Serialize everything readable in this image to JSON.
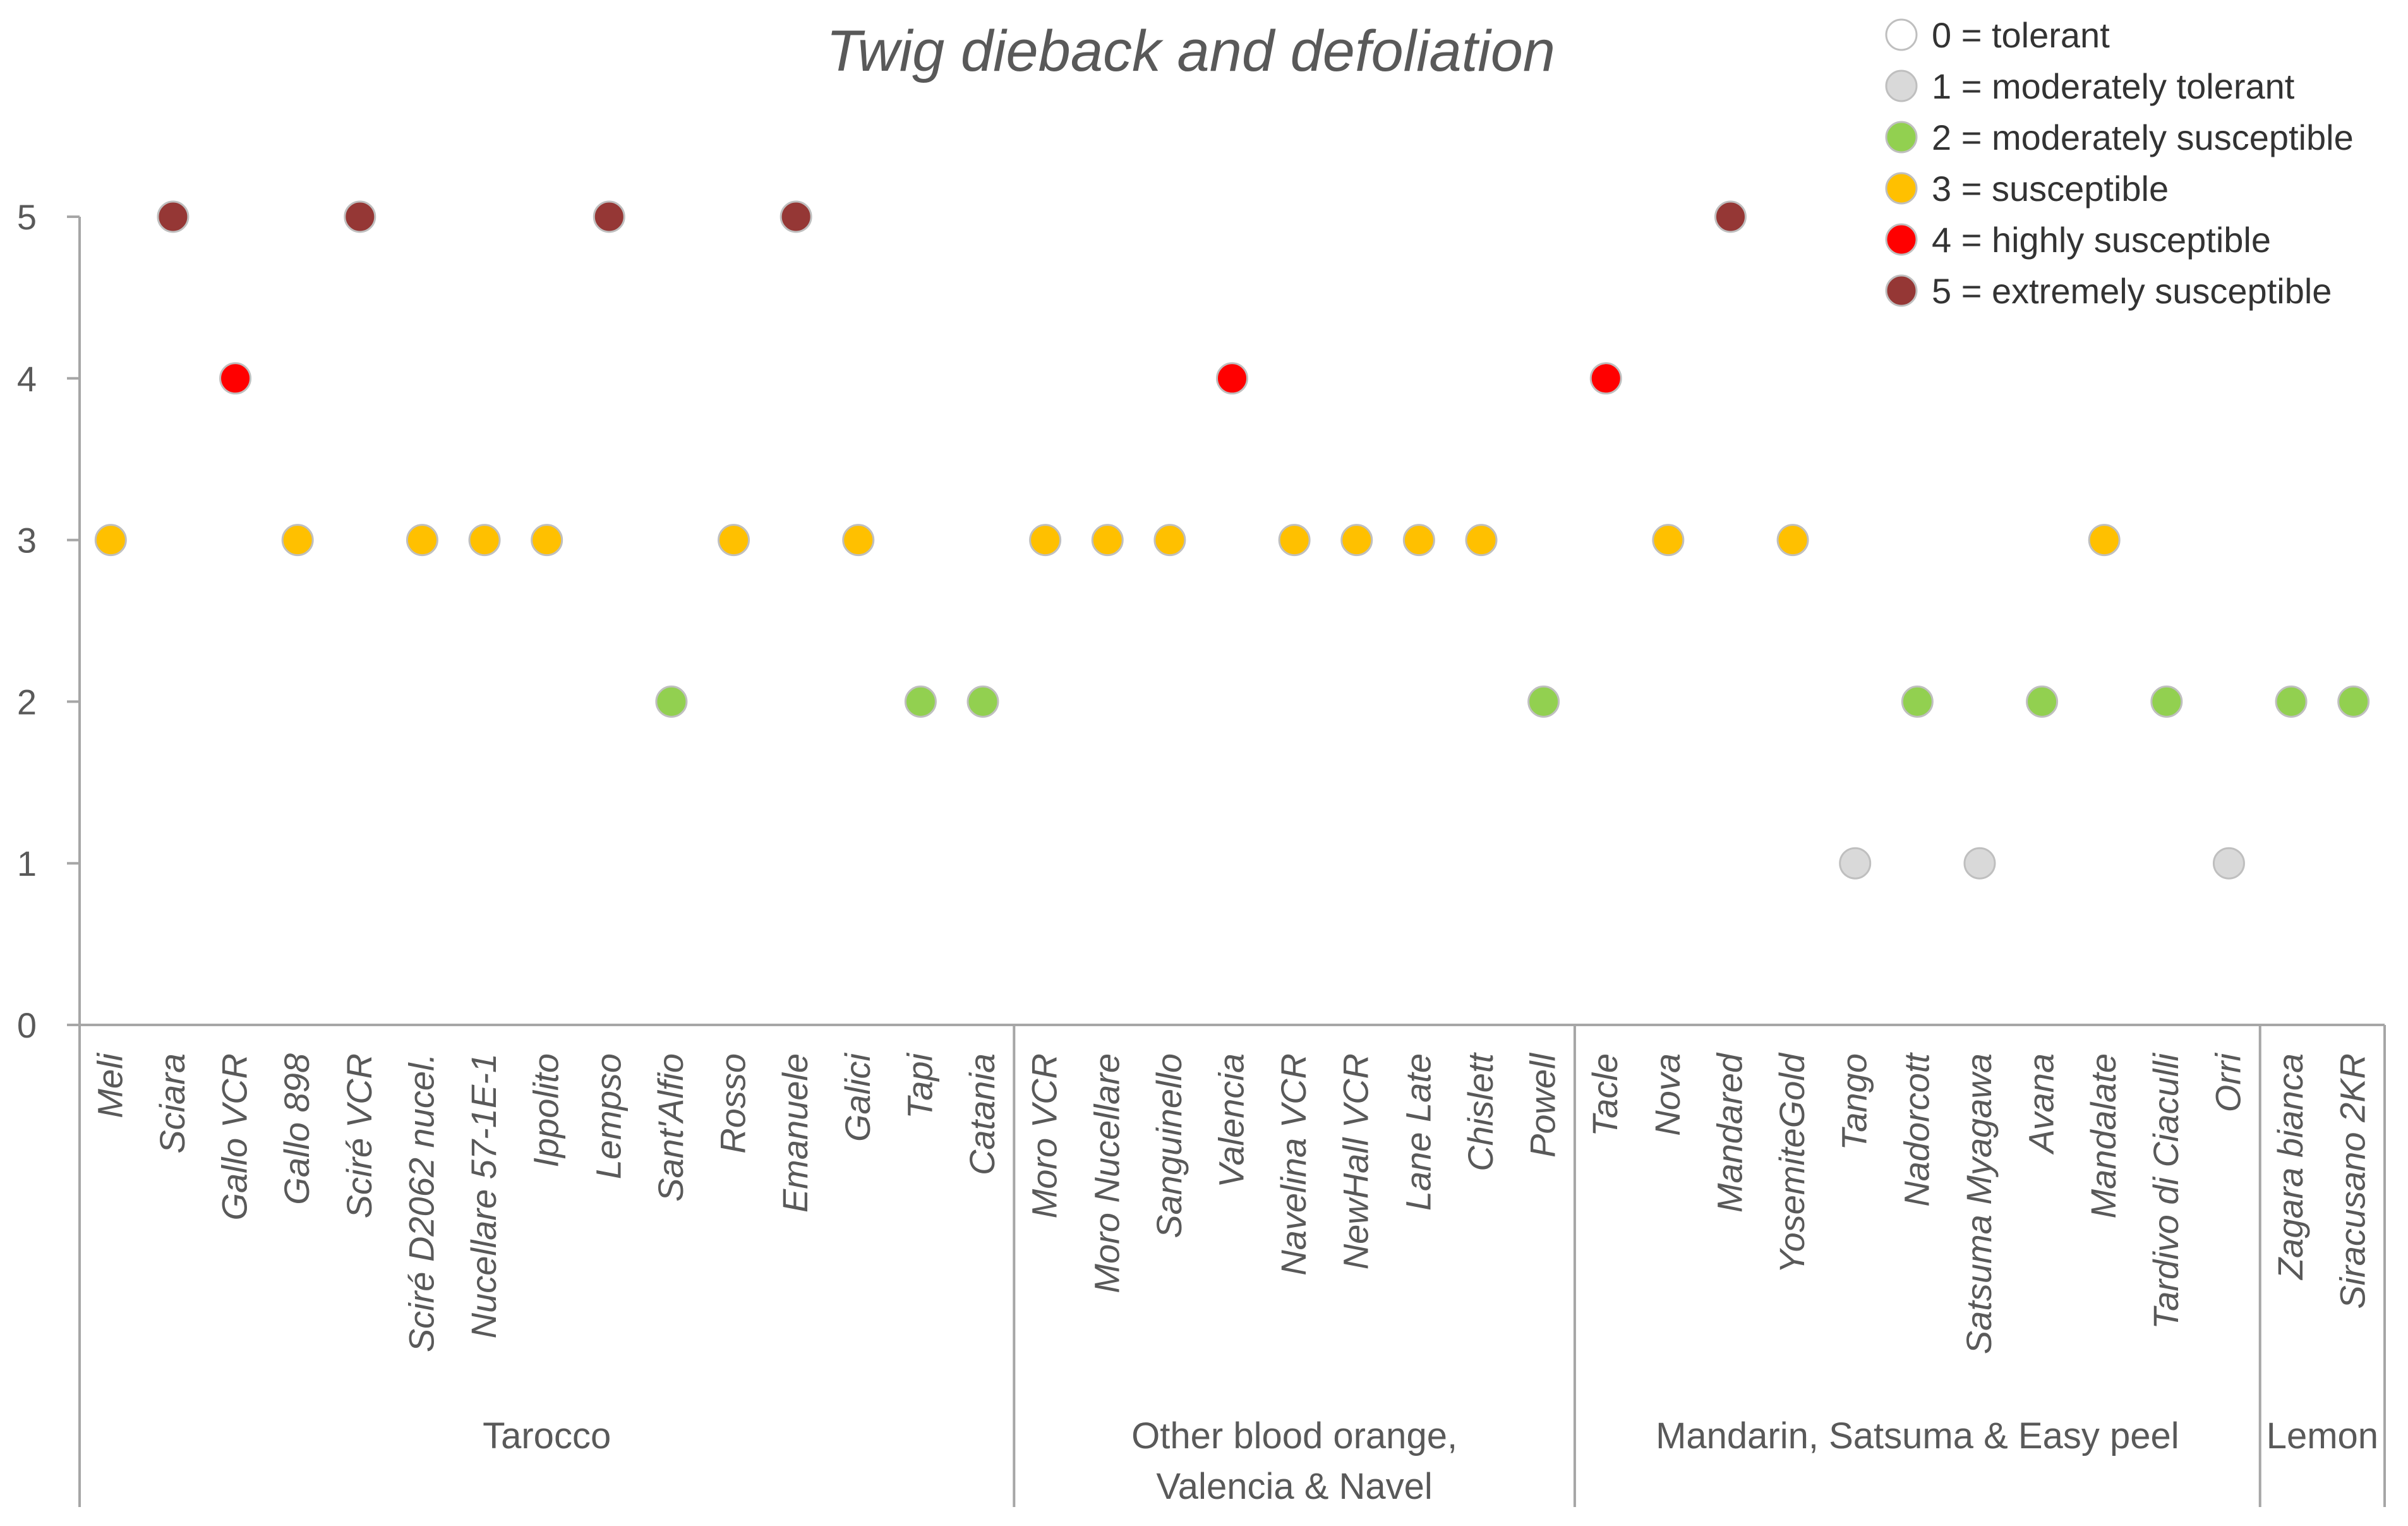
{
  "chart_data": {
    "type": "scatter",
    "title": "Twig dieback and defoliation",
    "xlabel": "",
    "ylabel": "",
    "ylim": [
      0,
      5
    ],
    "yticks": [
      0,
      1,
      2,
      3,
      4,
      5
    ],
    "grid": false,
    "legend_position": "top-right",
    "categories": [
      "Meli",
      "Sciara",
      "Gallo VCR",
      "Gallo 898",
      "Sciré VCR",
      "Sciré D2062 nucel.",
      "Nucellare 57-1E-1",
      "Ippolito",
      "Lempso",
      "Sant'Alfio",
      "Rosso",
      "Emanuele",
      "Galici",
      "Tapi",
      "Catania",
      "Moro VCR",
      "Moro Nucellare",
      "Sanguinello",
      "Valencia",
      "Navelina VCR",
      "NewHall VCR",
      "Lane Late",
      "Chislett",
      "Powell",
      "Tacle",
      "Nova",
      "Mandared",
      "YosemiteGold",
      "Tango",
      "Nadorcott",
      "Satsuma Myagawa",
      "Avana",
      "Mandalate",
      "Tardivo di Ciaculli",
      "Orri",
      "Zagara bianca",
      "Siracusano 2KR"
    ],
    "values": [
      3,
      5,
      4,
      3,
      5,
      3,
      3,
      3,
      5,
      2,
      3,
      5,
      3,
      2,
      2,
      3,
      3,
      3,
      4,
      3,
      3,
      3,
      3,
      2,
      4,
      3,
      5,
      3,
      1,
      2,
      1,
      2,
      3,
      2,
      1,
      2,
      2
    ],
    "groups": [
      {
        "name": "Tarocco",
        "start": 0,
        "end": 14
      },
      {
        "name": "Other blood orange, Valencia & Navel",
        "start": 15,
        "end": 23
      },
      {
        "name": "Mandarin, Satsuma & Easy peel",
        "start": 24,
        "end": 34
      },
      {
        "name": "Lemon",
        "start": 35,
        "end": 36
      }
    ],
    "legend": [
      {
        "value": 0,
        "label": "0 = tolerant",
        "color": "#ffffff"
      },
      {
        "value": 1,
        "label": "1 = moderately tolerant",
        "color": "#d9d9d9"
      },
      {
        "value": 2,
        "label": "2 = moderately susceptible",
        "color": "#92d050"
      },
      {
        "value": 3,
        "label": "3 = susceptible",
        "color": "#ffc000"
      },
      {
        "value": 4,
        "label": "4 = highly susceptible",
        "color": "#ff0000"
      },
      {
        "value": 5,
        "label": "5 = extremely susceptible",
        "color": "#953735"
      }
    ]
  }
}
